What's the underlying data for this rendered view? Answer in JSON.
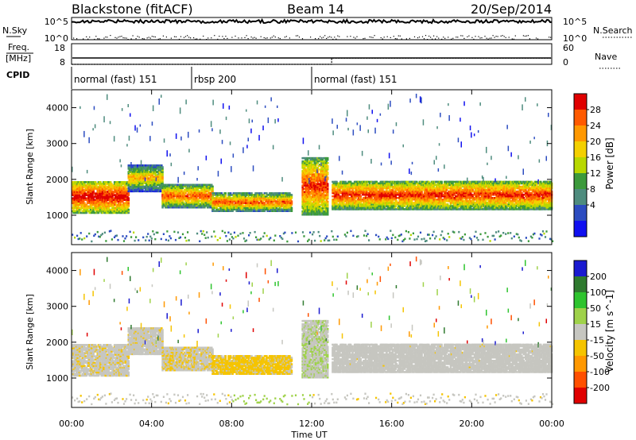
{
  "header": {
    "station": "Blackstone (fitACF)",
    "beam": "Beam 14",
    "date": "20/Sep/2014"
  },
  "nsky_panel": {
    "left_label": "N.Sky",
    "right_label": "N.Search",
    "left_ticks": [
      "10^5",
      "10^0"
    ],
    "right_ticks": [
      "10^5",
      "10^0"
    ]
  },
  "freq_panel": {
    "left_label_1": "Freq.",
    "left_label_2": "[MHz]",
    "right_label": "Nave",
    "left_ticks": [
      "18",
      "8"
    ],
    "right_ticks": [
      "60",
      "0"
    ]
  },
  "cpid": {
    "label": "CPID",
    "segments": [
      {
        "name": "normal (fast) 151",
        "start_h": 0,
        "end_h": 6
      },
      {
        "name": "rbsp 200",
        "start_h": 6,
        "end_h": 12
      },
      {
        "name": "normal (fast) 151",
        "start_h": 12,
        "end_h": 24
      }
    ]
  },
  "power_panel": {
    "ylabel": "Slant Range [km]",
    "colorbar_label": "Power [dB]",
    "colorbar_ticks": [
      "28",
      "24",
      "20",
      "16",
      "12",
      "8",
      "4"
    ],
    "colors": [
      "#e00000",
      "#ff5a00",
      "#ff9800",
      "#f4d000",
      "#b8d800",
      "#3c9a3c",
      "#4e8c7e",
      "#2c4cc0",
      "#1010f0"
    ]
  },
  "velocity_panel": {
    "ylabel": "Slant Range [km]",
    "colorbar_label": "Velocity [m s^-1]",
    "colorbar_ticks": [
      "200",
      "100",
      "50",
      "15",
      "-15",
      "-50",
      "-100",
      "-200"
    ],
    "colors": [
      "#1a1ad0",
      "#2f7a2f",
      "#2ec42e",
      "#9fd24a",
      "#c6c6c0",
      "#f5c400",
      "#ff9800",
      "#ff5000",
      "#e00000"
    ]
  },
  "xaxis": {
    "label": "Time UT",
    "ticks": [
      "00:00",
      "04:00",
      "08:00",
      "12:00",
      "16:00",
      "20:00",
      "00:00"
    ]
  },
  "chart_data": {
    "type": "heatmap",
    "title": "Blackstone (fitACF) Beam 14 20/Sep/2014",
    "xlabel": "Time UT",
    "ylabel": "Slant Range [km]",
    "xlim_hours": [
      0,
      24
    ],
    "ylim_km": [
      180,
      4500
    ],
    "yticks": [
      1000,
      2000,
      3000,
      4000
    ],
    "freq_mhz": [
      {
        "start_h": 0,
        "end_h": 24,
        "value": 10
      }
    ],
    "nave": [
      {
        "start_h": 0,
        "end_h": 13,
        "value": 0
      },
      {
        "start_h": 13,
        "end_h": 24,
        "value": 18
      }
    ],
    "power_db_range": [
      0,
      30
    ],
    "velocity_range": [
      -250,
      250
    ],
    "scatter_bands": [
      {
        "t0": 0.0,
        "t1": 2.8,
        "r0": 1050,
        "r1": 1950,
        "power": 22,
        "velocity": -15
      },
      {
        "t0": 2.8,
        "t1": 4.5,
        "r0": 1650,
        "r1": 2400,
        "power": 14,
        "velocity": -10
      },
      {
        "t0": 4.5,
        "t1": 7.0,
        "r0": 1200,
        "r1": 1850,
        "power": 18,
        "velocity": -20
      },
      {
        "t0": 7.0,
        "t1": 11.0,
        "r0": 1100,
        "r1": 1600,
        "power": 18,
        "velocity": -40
      },
      {
        "t0": 11.5,
        "t1": 12.8,
        "r0": 1000,
        "r1": 2600,
        "power": 20,
        "velocity": 20
      },
      {
        "t0": 13.0,
        "t1": 24.0,
        "r0": 1150,
        "r1": 1950,
        "power": 20,
        "velocity": -8
      }
    ]
  }
}
